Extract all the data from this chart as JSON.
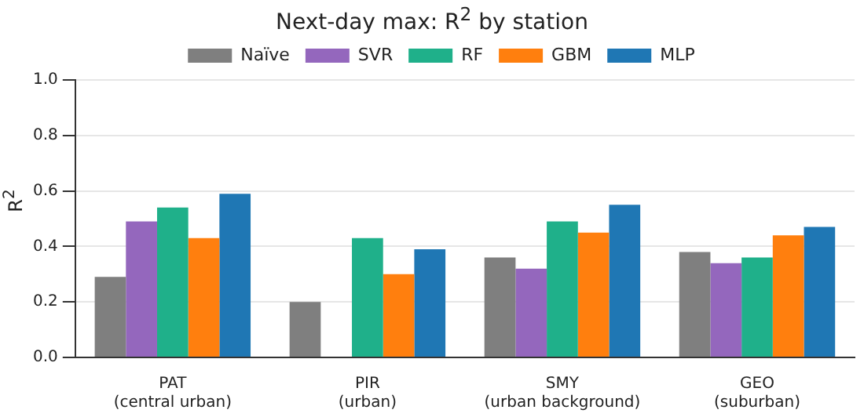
{
  "chart_data": {
    "type": "bar",
    "title": "Next-day max: R$^{2}$ by station",
    "ylabel": "R$^{2}$",
    "categories": [
      "PAT\n(central urban)",
      "PIR\n(urban)",
      "SMY\n(urban background)",
      "GEO\n(suburban)"
    ],
    "series": [
      {
        "name": "Naïve",
        "color": "#7f7f7f",
        "values": [
          0.29,
          0.2,
          0.36,
          0.38
        ]
      },
      {
        "name": "SVR",
        "color": "#9467bd",
        "values": [
          0.49,
          null,
          0.32,
          0.34
        ]
      },
      {
        "name": "RF",
        "color": "#1fb08a",
        "values": [
          0.54,
          0.43,
          0.49,
          0.36
        ]
      },
      {
        "name": "GBM",
        "color": "#ff7f0e",
        "values": [
          0.43,
          0.3,
          0.45,
          0.44
        ]
      },
      {
        "name": "MLP",
        "color": "#1f77b4",
        "values": [
          0.59,
          0.39,
          0.55,
          0.47
        ]
      }
    ],
    "ylim": [
      0,
      1
    ],
    "yticks": [
      {
        "value": 0,
        "label": "0.0"
      },
      {
        "value": 0.2,
        "label": "0.2"
      },
      {
        "value": 0.4,
        "label": "0.4"
      },
      {
        "value": 0.6,
        "label": "0.6"
      },
      {
        "value": 0.8,
        "label": "0.8"
      },
      {
        "value": 1,
        "label": "1.0"
      }
    ],
    "grid": "y",
    "legend": "top"
  }
}
